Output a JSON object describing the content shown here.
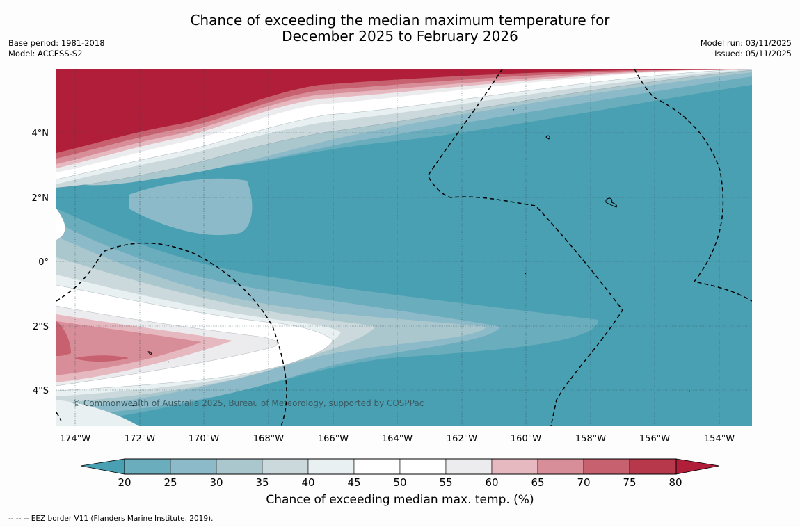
{
  "title": {
    "line1": "Chance of exceeding the median maximum temperature for",
    "line2": "December 2025 to February 2026"
  },
  "meta_left": {
    "base_period": "Base period: 1981-2018",
    "model": "Model: ACCESS-S2"
  },
  "meta_right": {
    "model_run": "Model run: 03/11/2025",
    "issued": "Issued: 05/11/2025"
  },
  "map": {
    "lon_labels": [
      "174°W",
      "172°W",
      "170°W",
      "168°W",
      "166°W",
      "164°W",
      "162°W",
      "160°W",
      "158°W",
      "156°W",
      "154°W"
    ],
    "lat_labels": [
      "4°N",
      "2°N",
      "0°",
      "2°S",
      "4°S"
    ],
    "copyright": "© Commonwealth of Australia 2025, Bureau of Meteorology, supported by COSPPac"
  },
  "colorbar": {
    "ticks": [
      "20",
      "25",
      "30",
      "35",
      "40",
      "45",
      "50",
      "55",
      "60",
      "65",
      "70",
      "75",
      "80"
    ],
    "colors": [
      "#4aa0b3",
      "#6aadbd",
      "#8cbac8",
      "#abc7ce",
      "#cbd9dd",
      "#e8f0f2",
      "#ffffff",
      "#ffffff",
      "#ececee",
      "#e6b8c0",
      "#d88e99",
      "#c8616f",
      "#b8384b",
      "#b01e3a"
    ],
    "label": "Chance of exceeding median max. temp. (%)"
  },
  "footnote": "--  --  -- EEZ border V11 (Flanders Marine Institute, 2019)."
}
